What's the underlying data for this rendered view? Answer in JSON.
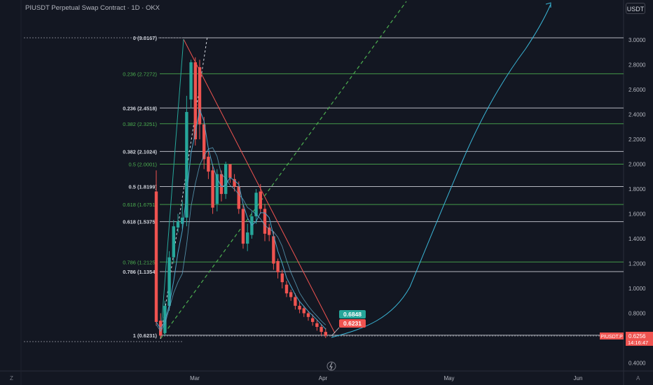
{
  "header": {
    "title": "PIUSDT Perpetual Swap Contract · 1D · OKX",
    "currency_button": "USDT"
  },
  "footer": {
    "left_corner": "Z",
    "right_corner": "A"
  },
  "colors": {
    "background": "#131722",
    "grid": "#1e222d",
    "up": "#26a69a",
    "down": "#ef5350",
    "fib_white": "#d1d4dc",
    "fib_green": "#4caf50",
    "projection": "#3ab5d6",
    "ma": "#4aa3c7"
  },
  "chart_data": {
    "type": "candlestick",
    "symbol": "PIUSDT.P",
    "ylim": [
      0.4,
      3.2
    ],
    "y_ticks": [
      "3.0000",
      "2.8000",
      "2.6000",
      "2.4000",
      "2.2000",
      "2.0000",
      "1.8000",
      "1.6000",
      "1.4000",
      "1.2000",
      "1.0000",
      "0.8000",
      "0.6000",
      "0.4000"
    ],
    "x_ticks": [
      "Mar",
      "Apr",
      "May",
      "Jun"
    ],
    "fib_levels": [
      {
        "label": "0 (3.0167)",
        "value": 3.0167,
        "color": "white"
      },
      {
        "label": "0.236 (2.7272)",
        "value": 2.7272,
        "color": "green"
      },
      {
        "label": "0.236 (2.4518)",
        "value": 2.4518,
        "color": "white"
      },
      {
        "label": "0.382 (2.3251)",
        "value": 2.3251,
        "color": "green"
      },
      {
        "label": "0.382 (2.1024)",
        "value": 2.1024,
        "color": "white"
      },
      {
        "label": "0.5 (2.0001)",
        "value": 2.0001,
        "color": "green"
      },
      {
        "label": "0.5 (1.8199)",
        "value": 1.8199,
        "color": "white"
      },
      {
        "label": "0.618 (1.6751)",
        "value": 1.6751,
        "color": "green"
      },
      {
        "label": "0.618 (1.5375)",
        "value": 1.5375,
        "color": "white"
      },
      {
        "label": "0.786 (1.2125)",
        "value": 1.2125,
        "color": "green"
      },
      {
        "label": "0.786 (1.1354)",
        "value": 1.1354,
        "color": "white"
      },
      {
        "label": "1 (0.6231)",
        "value": 0.6231,
        "color": "white"
      }
    ],
    "candles": [
      [
        1.78,
        0.73
      ],
      [
        0.74,
        0.62
      ],
      [
        0.64,
        0.86
      ],
      [
        0.86,
        1.25
      ],
      [
        1.25,
        1.5
      ],
      [
        1.49,
        1.54
      ],
      [
        1.52,
        1.57
      ],
      [
        1.57,
        2.42
      ],
      [
        2.52,
        2.82
      ],
      [
        2.82,
        2.2
      ],
      [
        2.78,
        2.32
      ],
      [
        2.32,
        2.04
      ],
      [
        2.06,
        1.94
      ],
      [
        1.95,
        1.65
      ],
      [
        1.68,
        1.92
      ],
      [
        1.92,
        1.76
      ],
      [
        1.76,
        2.0
      ],
      [
        2.0,
        1.89
      ],
      [
        1.88,
        1.82
      ],
      [
        1.82,
        1.64
      ],
      [
        1.64,
        1.36
      ],
      [
        1.36,
        1.45
      ],
      [
        1.43,
        1.58
      ],
      [
        1.58,
        1.77
      ],
      [
        1.78,
        1.64
      ],
      [
        1.64,
        1.44
      ],
      [
        1.49,
        1.43
      ],
      [
        1.42,
        1.2
      ],
      [
        1.22,
        1.13
      ],
      [
        1.12,
        1.05
      ],
      [
        1.03,
        0.96
      ],
      [
        0.97,
        0.93
      ],
      [
        0.93,
        0.86
      ],
      [
        0.86,
        0.83
      ],
      [
        0.84,
        0.8
      ],
      [
        0.8,
        0.77
      ],
      [
        0.76,
        0.73
      ],
      [
        0.72,
        0.69
      ],
      [
        0.69,
        0.65
      ],
      [
        0.65,
        0.62
      ]
    ],
    "candle_highs": [
      1.95,
      0.8,
      0.9,
      1.3,
      1.55,
      1.6,
      1.7,
      2.55,
      2.84,
      2.86,
      2.84,
      2.38,
      2.1,
      2.0,
      1.96,
      1.95,
      2.02,
      2.0,
      1.92,
      1.86,
      1.68,
      1.52,
      1.62,
      1.8,
      1.84,
      1.68,
      1.52,
      1.46,
      1.24,
      1.15,
      1.06,
      0.99,
      0.96,
      0.9,
      0.86,
      0.82,
      0.79,
      0.75,
      0.71,
      0.68
    ],
    "candle_lows": [
      0.7,
      0.6,
      0.62,
      0.82,
      1.2,
      1.45,
      1.48,
      1.5,
      2.45,
      2.15,
      2.2,
      1.96,
      1.88,
      1.6,
      1.62,
      1.7,
      1.72,
      1.85,
      1.78,
      1.6,
      1.32,
      1.3,
      1.4,
      1.52,
      1.6,
      1.38,
      1.38,
      1.15,
      1.08,
      1.0,
      0.93,
      0.9,
      0.83,
      0.8,
      0.77,
      0.74,
      0.7,
      0.66,
      0.62,
      0.6
    ],
    "callouts": [
      {
        "text": "0.6848",
        "value": 0.6848,
        "color": "up"
      },
      {
        "text": "0.6231",
        "value": 0.6231,
        "color": "down"
      }
    ],
    "last_price": {
      "symbol": "PIUSDT.P",
      "price": "0.6256",
      "countdown": "14:16:47"
    }
  }
}
